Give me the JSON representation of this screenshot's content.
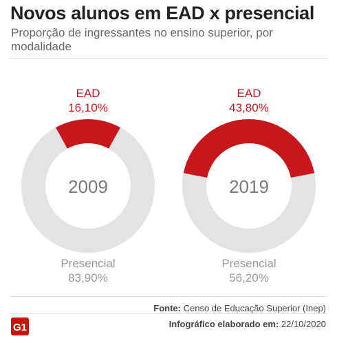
{
  "title": "Novos alunos em EAD x presencial",
  "subtitle": "Proporção de ingressantes no ensino superior, por modalidade",
  "source_label": "Fonte:",
  "source_text": "Censo de Educação Superior (Inep)",
  "credit_label": "Infográfico elaborado em:",
  "credit_date": "22/10/2020",
  "logo_text": "G1",
  "colors": {
    "ead": "#c8161d",
    "presencial": "#e3e3e3",
    "label_ead": "#c8161d",
    "label_presencial": "#999999"
  },
  "chart_data": [
    {
      "type": "pie",
      "center_label": "2009",
      "slices": [
        {
          "label": "EAD",
          "value": 16.1,
          "value_text": "16,10%"
        },
        {
          "label": "Presencial",
          "value": 83.9,
          "value_text": "83,90%"
        }
      ]
    },
    {
      "type": "pie",
      "center_label": "2019",
      "slices": [
        {
          "label": "EAD",
          "value": 43.8,
          "value_text": "43,80%"
        },
        {
          "label": "Presencial",
          "value": 56.2,
          "value_text": "56,20%"
        }
      ]
    }
  ]
}
